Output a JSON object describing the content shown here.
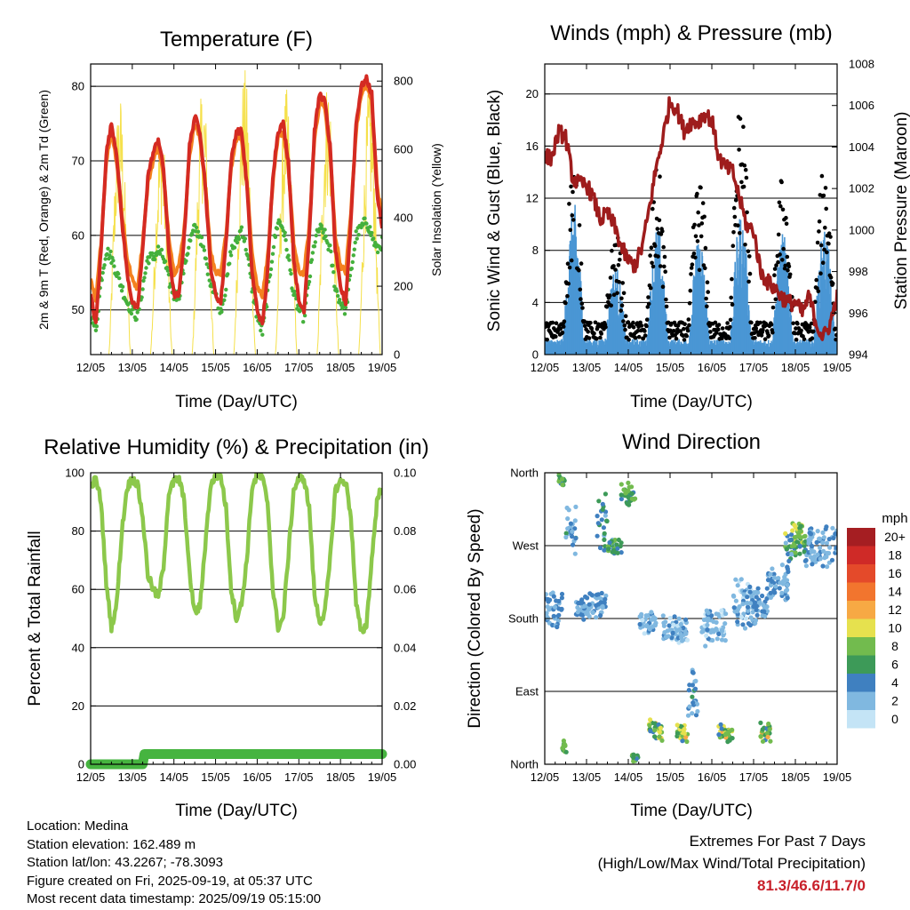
{
  "colors": {
    "temp_red": "#d42a22",
    "temp_orange": "#f4811f",
    "dewpoint_green": "#44b03c",
    "solar_yellow": "#f5e04a",
    "wind_blue": "#4a96d4",
    "gust_black": "#000000",
    "pressure_maroon": "#9e1c1c",
    "rh_green": "#8cc84b",
    "precip_green": "#46b440",
    "extremes_red": "#c8202a"
  },
  "info": {
    "location": "Location: Medina",
    "elevation": "Station elevation: 162.489 m",
    "latlon": "Station lat/lon: 43.2267; -78.3093",
    "created": "Figure created on Fri, 2025-09-19, at 05:37 UTC",
    "recent": "Most recent data timestamp: 2025/09/19 05:15:00"
  },
  "extremes": {
    "title": "Extremes For Past 7 Days",
    "subtitle": "(High/Low/Max Wind/Total Precipitation)",
    "value": "81.3/46.6/11.7/0"
  },
  "chart_data": [
    {
      "type": "line",
      "title": "Temperature (F)",
      "xlabel": "Time (Day/UTC)",
      "ylabel": "2m & 9m T (Red, Orange) & 2m Td (Green)",
      "ylabel_right": "Solar Insolation (Yellow)",
      "x_ticks": [
        "12/05",
        "13/05",
        "14/05",
        "15/05",
        "16/05",
        "17/05",
        "18/05",
        "19/05"
      ],
      "xlim": [
        0,
        7
      ],
      "ylim": [
        44,
        83
      ],
      "ylim_right": [
        0,
        850
      ],
      "y_ticks": [
        50,
        60,
        70,
        80
      ],
      "y_ticks_right": [
        0,
        200,
        400,
        600,
        800
      ],
      "grid_y": [
        50,
        60,
        70,
        80
      ],
      "series": [
        {
          "name": "2m T",
          "color": "#d42a22",
          "t_hours": [
            0,
            3,
            6,
            9,
            12,
            15,
            18,
            21,
            24,
            27,
            30,
            33,
            36,
            39,
            42,
            45,
            48,
            51,
            54,
            57,
            60,
            63,
            66,
            69,
            72,
            75,
            78,
            81,
            84,
            87,
            90,
            93,
            96,
            99,
            102,
            105,
            108,
            111,
            114,
            117,
            120,
            123,
            126,
            129,
            132,
            135,
            138,
            141,
            144,
            147,
            150,
            153,
            156,
            159,
            162,
            165,
            168
          ],
          "values": [
            52,
            48,
            58,
            71,
            75,
            71,
            62,
            55,
            51,
            50,
            58,
            68,
            71,
            73,
            69,
            58,
            52,
            52,
            60,
            72,
            76,
            74,
            67,
            56,
            52,
            51,
            59,
            70,
            74,
            74,
            67,
            55,
            50,
            48,
            55,
            68,
            74,
            75,
            70,
            57,
            51,
            50,
            60,
            74,
            79,
            78,
            72,
            58,
            53,
            51,
            62,
            75,
            80,
            81,
            79,
            66,
            61
          ]
        },
        {
          "name": "9m T",
          "color": "#f4811f",
          "t_hours": [
            0,
            3,
            6,
            9,
            12,
            15,
            18,
            21,
            24,
            27,
            30,
            33,
            36,
            39,
            42,
            45,
            48,
            51,
            54,
            57,
            60,
            63,
            66,
            69,
            72,
            75,
            78,
            81,
            84,
            87,
            90,
            93,
            96,
            99,
            102,
            105,
            108,
            111,
            114,
            117,
            120,
            123,
            126,
            129,
            132,
            135,
            138,
            141,
            144,
            147,
            150,
            153,
            156,
            159,
            162,
            165,
            168
          ],
          "values": [
            54,
            51,
            59,
            70,
            74,
            70,
            63,
            57,
            54,
            53,
            59,
            67,
            70,
            72,
            68,
            60,
            55,
            56,
            61,
            71,
            75,
            73,
            67,
            58,
            55,
            55,
            60,
            69,
            73,
            73,
            67,
            58,
            53,
            52,
            57,
            67,
            73,
            74,
            69,
            59,
            55,
            55,
            61,
            73,
            78,
            77,
            71,
            60,
            56,
            55,
            63,
            74,
            79,
            80,
            78,
            67,
            62
          ]
        },
        {
          "name": "2m Td",
          "color": "#44b03c",
          "t_hours": [
            0,
            3,
            6,
            9,
            12,
            15,
            18,
            21,
            24,
            27,
            30,
            33,
            36,
            39,
            42,
            45,
            48,
            51,
            54,
            57,
            60,
            63,
            66,
            69,
            72,
            75,
            78,
            81,
            84,
            87,
            90,
            93,
            96,
            99,
            102,
            105,
            108,
            111,
            114,
            117,
            120,
            123,
            126,
            129,
            132,
            135,
            138,
            141,
            144,
            147,
            150,
            153,
            156,
            159,
            162,
            165,
            168
          ],
          "values": [
            50,
            47,
            54,
            58,
            57,
            55,
            53,
            51,
            50,
            49,
            53,
            57,
            57,
            58,
            57,
            54,
            52,
            52,
            56,
            59,
            61,
            60,
            57,
            54,
            52,
            50,
            53,
            58,
            59,
            61,
            58,
            53,
            49,
            47,
            52,
            58,
            62,
            61,
            57,
            52,
            50,
            49,
            54,
            59,
            61,
            60,
            58,
            53,
            51,
            50,
            55,
            60,
            61,
            62,
            60,
            58,
            59
          ]
        },
        {
          "name": "Solar Insolation",
          "color": "#f5e04a",
          "axis": "right",
          "day_peaks": [
            770,
            680,
            800,
            840,
            780,
            820,
            800
          ]
        }
      ]
    },
    {
      "type": "scatter",
      "title": "Winds (mph) & Pressure (mb)",
      "xlabel": "Time (Day/UTC)",
      "ylabel": "Sonic Wind & Gust (Blue, Black)",
      "ylabel_right": "Station Pressure (Maroon)",
      "x_ticks": [
        "12/05",
        "13/05",
        "14/05",
        "15/05",
        "16/05",
        "17/05",
        "18/05",
        "19/05"
      ],
      "xlim": [
        0,
        7
      ],
      "ylim": [
        0,
        22.3
      ],
      "ylim_right": [
        994,
        1008
      ],
      "y_ticks": [
        0,
        4,
        8,
        12,
        16,
        20
      ],
      "y_ticks_right": [
        994,
        996,
        998,
        1000,
        1002,
        1004,
        1006,
        1008
      ],
      "grid_y": [
        4,
        8,
        12,
        16,
        20
      ],
      "series": [
        {
          "name": "Sonic Wind",
          "color": "#4a96d4",
          "day_peaks": [
            11.7,
            7.0,
            10.0,
            9.0,
            11.0,
            9.5,
            10.0
          ]
        },
        {
          "name": "Gust",
          "color": "#000000",
          "day_peaks": [
            15.5,
            9.5,
            14.5,
            14.0,
            20.3,
            14.0,
            15.0
          ]
        },
        {
          "name": "Station Pressure",
          "color": "#9e1c1c",
          "axis": "right",
          "t_hours": [
            0,
            4,
            8,
            12,
            16,
            20,
            24,
            28,
            32,
            36,
            40,
            44,
            48,
            52,
            56,
            60,
            64,
            68,
            72,
            76,
            80,
            84,
            88,
            92,
            96,
            100,
            104,
            108,
            112,
            116,
            120,
            124,
            128,
            132,
            136,
            140,
            144,
            148,
            152,
            156,
            160,
            164,
            168
          ],
          "values": [
            1003.5,
            1003.5,
            1004.7,
            1004.5,
            1002.5,
            1002.2,
            1002.2,
            1001.5,
            1000.5,
            1000.8,
            1000.2,
            999.2,
            998.5,
            998.3,
            999.2,
            1001.0,
            1003.0,
            1004.5,
            1006.2,
            1005.8,
            1004.8,
            1005.2,
            1005.2,
            1005.6,
            1005.3,
            1003.5,
            1003.0,
            1002.8,
            1001.5,
            1000.2,
            1000.0,
            998.0,
            997.5,
            997.2,
            996.8,
            996.5,
            996.5,
            996.0,
            996.8,
            995.5,
            994.8,
            995.5,
            996.8
          ]
        }
      ]
    },
    {
      "type": "line",
      "title": "Relative Humidity (%) & Precipitation (in)",
      "xlabel": "Time (Day/UTC)",
      "ylabel": "Percent & Total Rainfall",
      "x_ticks": [
        "12/05",
        "13/05",
        "14/05",
        "15/05",
        "16/05",
        "17/05",
        "18/05",
        "19/05"
      ],
      "xlim": [
        0,
        7
      ],
      "ylim": [
        0,
        100
      ],
      "ylim_right": [
        0,
        0.1
      ],
      "y_ticks": [
        0,
        20,
        40,
        60,
        80,
        100
      ],
      "y_ticks_right": [
        "0.00",
        "0.02",
        "0.04",
        "0.06",
        "0.08",
        "0.10"
      ],
      "grid_y": [
        20,
        40,
        60,
        80
      ],
      "series": [
        {
          "name": "Relative Humidity",
          "color": "#8cc84b",
          "t_hours": [
            0,
            3,
            6,
            9,
            12,
            15,
            18,
            21,
            24,
            27,
            30,
            33,
            36,
            39,
            42,
            45,
            48,
            51,
            54,
            57,
            60,
            63,
            66,
            69,
            72,
            75,
            78,
            81,
            84,
            87,
            90,
            93,
            96,
            99,
            102,
            105,
            108,
            111,
            114,
            117,
            120,
            123,
            126,
            129,
            132,
            135,
            138,
            141,
            144,
            147,
            150,
            153,
            156,
            159,
            162,
            165,
            168
          ],
          "values": [
            95,
            98,
            90,
            62,
            47,
            55,
            80,
            95,
            98,
            96,
            85,
            65,
            60,
            57,
            68,
            93,
            97,
            98,
            90,
            65,
            52,
            54,
            75,
            95,
            99,
            99,
            88,
            60,
            50,
            55,
            70,
            95,
            99,
            98,
            90,
            60,
            47,
            50,
            72,
            94,
            98,
            98,
            88,
            58,
            49,
            52,
            70,
            94,
            97,
            97,
            85,
            55,
            45,
            48,
            70,
            90,
            96
          ]
        },
        {
          "name": "Precipitation",
          "color": "#46b440",
          "t_hours": [
            0,
            30,
            31,
            168
          ],
          "values": [
            0,
            0,
            0.0035,
            0.0035
          ]
        }
      ]
    },
    {
      "type": "scatter",
      "title": "Wind Direction",
      "xlabel": "Time (Day/UTC)",
      "ylabel": "Direction (Colored By Speed)",
      "x_ticks": [
        "12/05",
        "13/05",
        "14/05",
        "15/05",
        "16/05",
        "17/05",
        "18/05",
        "19/05"
      ],
      "xlim": [
        0,
        7
      ],
      "ylim": [
        0,
        360
      ],
      "y_ticks": [
        "North",
        "East",
        "South",
        "West",
        "North"
      ],
      "y_tick_values": [
        0,
        90,
        180,
        270,
        360
      ],
      "grid_y": [
        90,
        180,
        270
      ],
      "legend_title": "mph",
      "legend_labels": [
        "20+",
        "18",
        "16",
        "14",
        "12",
        "10",
        "8",
        "6",
        "4",
        "2",
        "0"
      ],
      "legend_colors": [
        "#a51e22",
        "#cf2a27",
        "#e44a2a",
        "#f2752e",
        "#f7a944",
        "#e6e14e",
        "#72bb4e",
        "#3d9a58",
        "#3f80c0",
        "#80b8e0",
        "#c4e4f6"
      ]
    }
  ]
}
